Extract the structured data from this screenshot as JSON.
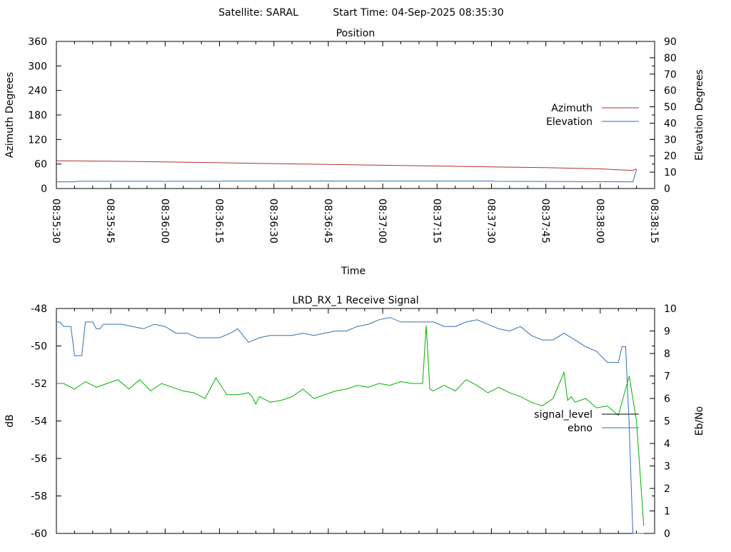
{
  "header": {
    "satellite_label": "Satellite: SARAL",
    "start_time_label": "Start Time: 04-Sep-2025 08:35:30"
  },
  "colors": {
    "azimuth": "#b03030",
    "elevation": "#3070b0",
    "signal_level": "#000000",
    "ebno": "#3070b0",
    "signal_level_trace": "#00b000",
    "axes": "#000000"
  },
  "chart_data": [
    {
      "type": "line",
      "title": "Position",
      "xlabel": "Time",
      "ylabel": "Azimuth Degrees",
      "y2label": "Elevation Degrees",
      "ylim": [
        0,
        360
      ],
      "y2lim": [
        0,
        90
      ],
      "yticks": [
        "0",
        "60",
        "120",
        "180",
        "240",
        "300",
        "360"
      ],
      "y2ticks": [
        "0",
        "10",
        "20",
        "30",
        "40",
        "50",
        "60",
        "70",
        "80",
        "90"
      ],
      "xticks": [
        "08:35:30",
        "08:35:45",
        "08:36:00",
        "08:36:15",
        "08:36:30",
        "08:36:45",
        "08:37:00",
        "08:37:15",
        "08:37:30",
        "08:37:45",
        "08:38:00",
        "08:38:15"
      ],
      "xlim": [
        "08:35:30",
        "08:38:15"
      ],
      "legend_position": "right",
      "grid": false,
      "series": [
        {
          "name": "Azimuth",
          "axis": "left",
          "x": [
            "08:35:30",
            "08:35:45",
            "08:36:00",
            "08:36:15",
            "08:36:30",
            "08:36:45",
            "08:37:00",
            "08:37:15",
            "08:37:30",
            "08:37:45",
            "08:38:00",
            "08:38:09",
            "08:38:10"
          ],
          "values": [
            68,
            67,
            65,
            63,
            61,
            59,
            57,
            55,
            53,
            51,
            48,
            44,
            48
          ]
        },
        {
          "name": "Elevation",
          "axis": "right",
          "x": [
            "08:35:30",
            "08:35:35",
            "08:35:36",
            "08:36:15",
            "08:36:16",
            "08:37:30",
            "08:37:31",
            "08:38:09",
            "08:38:10"
          ],
          "values": [
            4.1,
            4.1,
            4.4,
            4.4,
            4.6,
            4.6,
            4.4,
            4.1,
            11.5
          ]
        }
      ]
    },
    {
      "type": "line",
      "title": "LRD_RX_1 Receive Signal",
      "ylabel": "dB",
      "y2label": "Eb/No",
      "ylim": [
        -60,
        -48
      ],
      "y2lim": [
        0,
        10
      ],
      "yticks": [
        "-60",
        "-58",
        "-56",
        "-54",
        "-52",
        "-50",
        "-48"
      ],
      "y2ticks": [
        "0",
        "1",
        "2",
        "3",
        "4",
        "5",
        "6",
        "7",
        "8",
        "9",
        "10"
      ],
      "xlim": [
        "08:35:30",
        "08:38:15"
      ],
      "legend_position": "right",
      "grid": false,
      "series": [
        {
          "name": "signal_level",
          "axis": "left",
          "x": [
            0,
            2,
            5,
            8,
            11,
            14,
            17,
            20,
            23,
            26,
            29,
            32,
            35,
            38,
            41,
            44,
            47,
            50,
            53,
            54,
            55,
            56,
            59,
            62,
            65,
            68,
            71,
            74,
            77,
            80,
            83,
            86,
            89,
            92,
            95,
            98,
            101,
            102,
            103,
            104,
            107,
            110,
            113,
            116,
            119,
            122,
            125,
            128,
            131,
            134,
            137,
            140,
            141,
            142,
            143,
            146,
            149,
            152,
            155,
            158,
            160,
            162
          ],
          "values": [
            -52.0,
            -52.0,
            -52.3,
            -51.9,
            -52.2,
            -52.0,
            -51.8,
            -52.3,
            -51.8,
            -52.4,
            -52.0,
            -52.2,
            -52.4,
            -52.5,
            -52.8,
            -51.7,
            -52.6,
            -52.6,
            -52.5,
            -52.7,
            -53.1,
            -52.7,
            -53.0,
            -52.9,
            -52.7,
            -52.3,
            -52.8,
            -52.6,
            -52.4,
            -52.3,
            -52.1,
            -52.2,
            -52.0,
            -52.1,
            -51.9,
            -52.0,
            -52.0,
            -48.9,
            -52.3,
            -52.4,
            -52.1,
            -52.4,
            -51.8,
            -52.1,
            -52.5,
            -52.2,
            -52.5,
            -52.7,
            -53.0,
            -53.2,
            -52.8,
            -51.4,
            -52.9,
            -52.7,
            -53.0,
            -52.8,
            -53.3,
            -53.2,
            -53.7,
            -51.6,
            -54.0,
            -59.6
          ]
        },
        {
          "name": "ebno",
          "axis": "right",
          "x": [
            0,
            1,
            2,
            3,
            4,
            5,
            6,
            7,
            8,
            9,
            10,
            11,
            12,
            13,
            15,
            18,
            21,
            24,
            27,
            30,
            33,
            36,
            39,
            42,
            45,
            48,
            50,
            53,
            56,
            59,
            62,
            65,
            68,
            71,
            74,
            77,
            80,
            83,
            86,
            89,
            92,
            95,
            98,
            101,
            104,
            107,
            110,
            113,
            116,
            119,
            122,
            125,
            128,
            131,
            134,
            137,
            140,
            143,
            146,
            149,
            152,
            155,
            156,
            157,
            158,
            159,
            160,
            161,
            162
          ],
          "values": [
            9.4,
            9.4,
            9.2,
            9.2,
            9.2,
            7.9,
            7.9,
            7.9,
            9.4,
            9.4,
            9.4,
            9.1,
            9.1,
            9.3,
            9.3,
            9.3,
            9.2,
            9.1,
            9.3,
            9.2,
            8.9,
            8.9,
            8.7,
            8.7,
            8.7,
            8.9,
            9.1,
            8.5,
            8.7,
            8.8,
            8.8,
            8.8,
            8.9,
            8.8,
            8.9,
            9.0,
            9.0,
            9.2,
            9.3,
            9.5,
            9.6,
            9.4,
            9.4,
            9.4,
            9.4,
            9.2,
            9.2,
            9.4,
            9.5,
            9.3,
            9.1,
            9.0,
            9.2,
            8.8,
            8.6,
            8.6,
            8.9,
            8.6,
            8.3,
            8.1,
            7.6,
            7.6,
            8.3,
            8.3,
            4.8,
            0.0,
            0.0,
            0.0,
            0.0
          ]
        }
      ]
    }
  ]
}
